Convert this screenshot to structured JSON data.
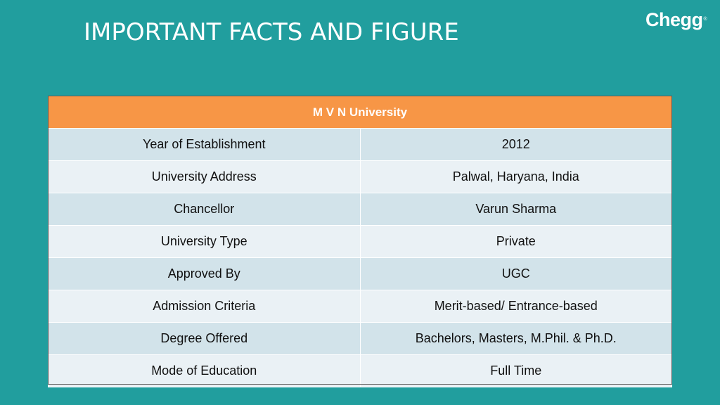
{
  "slide": {
    "title": "IMPORTANT FACTS AND FIGURE"
  },
  "logo": {
    "text": "Chegg",
    "mark": "®"
  },
  "table": {
    "header": "M V N University",
    "rows": [
      {
        "label": "Year of Establishment",
        "value": "2012"
      },
      {
        "label": "University Address",
        "value": "Palwal, Haryana, India"
      },
      {
        "label": "Chancellor",
        "value": "Varun Sharma"
      },
      {
        "label": "University Type",
        "value": "Private"
      },
      {
        "label": "Approved By",
        "value": "UGC"
      },
      {
        "label": "Admission Criteria",
        "value": "Merit-based/ Entrance-based"
      },
      {
        "label": "Degree Offered",
        "value": "Bachelors, Masters, M.Phil. & Ph.D."
      },
      {
        "label": "Mode of Education",
        "value": "Full Time"
      }
    ]
  },
  "colors": {
    "background": "#219e9e",
    "header": "#f79646",
    "row_odd": "#d2e3ea",
    "row_even": "#eaf1f5"
  }
}
